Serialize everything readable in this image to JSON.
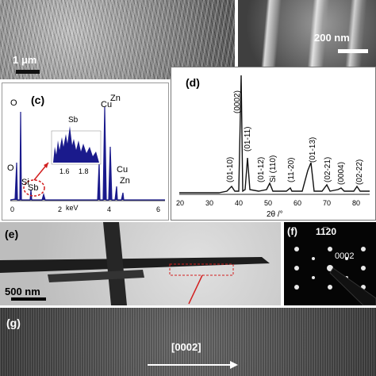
{
  "panel_a": {
    "scale_label": "1 μm"
  },
  "panel_b": {
    "scale_label": "200 nm"
  },
  "panel_c": {
    "label": "(c)",
    "peaks": [
      "O",
      "O",
      "Si",
      "Sb",
      "Sb",
      "Cu",
      "Zn",
      "Cu",
      "Zn"
    ],
    "inset_ticks": [
      "1.6",
      "1.8"
    ],
    "x_ticks": [
      "0",
      "2",
      "4",
      "6"
    ],
    "x_unit": "keV"
  },
  "panel_d": {
    "label": "(d)",
    "peak_labels": [
      "(0002)",
      "(01-11)",
      "(01-10)",
      "(01-12)",
      "Si (110)",
      "(11-20)",
      "(01-13)",
      "(02-21)",
      "(0004)",
      "(02-22)"
    ],
    "x_ticks": [
      "20",
      "30",
      "40",
      "50",
      "60",
      "70",
      "80"
    ],
    "xlabel": "2θ /°"
  },
  "panel_e": {
    "label": "(e)",
    "scale_label": "500 nm"
  },
  "panel_f": {
    "label": "(f)",
    "spot_1": "11̅20",
    "spot_2": "0002"
  },
  "panel_g": {
    "label": "(g)",
    "direction_label": "[0002]"
  },
  "colors": {
    "edx": "#1a1a8c",
    "xrd": "#111111",
    "highlight": "#d21f1f"
  }
}
